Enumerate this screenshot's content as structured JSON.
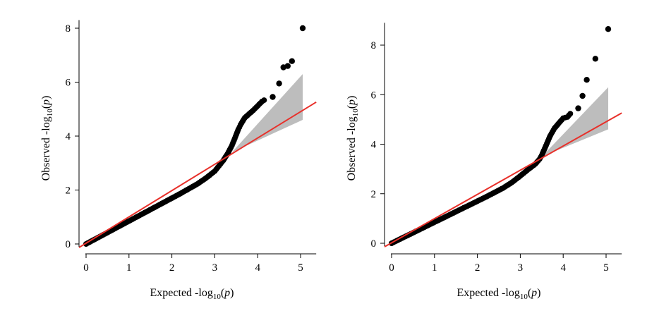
{
  "chart_data": [
    {
      "type": "scatter",
      "xlabel": "Expected -log10(p)",
      "ylabel": "Observed -log10(p)",
      "xlabel_parts": {
        "pre": "Expected -log",
        "sub": "10",
        "post_open": "(",
        "var": "p",
        "post_close": ")"
      },
      "ylabel_parts": {
        "pre": "Observed -log",
        "sub": "10",
        "post_open": "(",
        "var": "p",
        "post_close": ")"
      },
      "xlim": [
        0,
        5.2
      ],
      "ylim": [
        0,
        8.3
      ],
      "xticks": [
        "0",
        "1",
        "2",
        "3",
        "4",
        "5"
      ],
      "yticks": [
        "0",
        "2",
        "4",
        "6",
        "8"
      ],
      "grid": false,
      "reference_line": {
        "color": "#e8302a",
        "slope": 1,
        "x_range": [
          0,
          5.2
        ]
      },
      "confidence_band": {
        "color": "#bdbdbd",
        "x_start": 3.4,
        "x_end": 5.05,
        "upper_end": 6.3,
        "lower_end": 4.6
      },
      "points_color": "#000000",
      "series": [
        {
          "x": [
            0,
            0.2,
            0.4,
            0.6,
            0.8,
            1.0,
            1.2,
            1.4,
            1.6,
            1.8,
            2.0,
            2.2,
            2.4,
            2.6,
            2.8,
            3.0,
            3.1,
            3.2,
            3.3,
            3.35,
            3.4,
            3.45,
            3.5,
            3.55,
            3.6,
            3.65,
            3.7,
            3.8,
            3.9,
            4.0,
            4.1,
            4.2,
            4.35,
            4.5,
            4.6,
            4.7,
            4.8,
            5.05
          ],
          "y": [
            0,
            0.17,
            0.34,
            0.51,
            0.68,
            0.85,
            1.02,
            1.19,
            1.36,
            1.53,
            1.7,
            1.87,
            2.05,
            2.23,
            2.45,
            2.7,
            2.9,
            3.1,
            3.35,
            3.5,
            3.65,
            3.85,
            4.05,
            4.25,
            4.42,
            4.55,
            4.68,
            4.82,
            4.96,
            5.12,
            5.28,
            5.38,
            5.45,
            5.95,
            6.55,
            6.6,
            6.78,
            8.0
          ]
        }
      ]
    },
    {
      "type": "scatter",
      "xlabel": "Expected -log10(p)",
      "ylabel": "Observed -log10(p)",
      "xlabel_parts": {
        "pre": "Expected -log",
        "sub": "10",
        "post_open": "(",
        "var": "p",
        "post_close": ")"
      },
      "ylabel_parts": {
        "pre": "Observed -log",
        "sub": "10",
        "post_open": "(",
        "var": "p",
        "post_close": ")"
      },
      "xlim": [
        0,
        5.2
      ],
      "ylim": [
        0,
        8.9
      ],
      "xticks": [
        "0",
        "1",
        "2",
        "3",
        "4",
        "5"
      ],
      "yticks": [
        "0",
        "2",
        "4",
        "6",
        "8"
      ],
      "grid": false,
      "reference_line": {
        "color": "#e8302a",
        "slope": 1,
        "x_range": [
          0,
          5.2
        ]
      },
      "confidence_band": {
        "color": "#bdbdbd",
        "x_start": 3.5,
        "x_end": 5.05,
        "upper_end": 6.3,
        "lower_end": 4.6
      },
      "points_color": "#000000",
      "series": [
        {
          "x": [
            0,
            0.2,
            0.4,
            0.6,
            0.8,
            1.0,
            1.2,
            1.4,
            1.6,
            1.8,
            2.0,
            2.2,
            2.4,
            2.6,
            2.8,
            3.0,
            3.2,
            3.35,
            3.45,
            3.5,
            3.55,
            3.6,
            3.65,
            3.7,
            3.75,
            3.8,
            3.85,
            3.9,
            4.0,
            4.1,
            4.2,
            4.35,
            4.45,
            4.55,
            4.75,
            5.05
          ],
          "y": [
            0,
            0.17,
            0.34,
            0.51,
            0.68,
            0.85,
            1.02,
            1.19,
            1.36,
            1.53,
            1.7,
            1.87,
            2.05,
            2.23,
            2.45,
            2.72,
            3.0,
            3.2,
            3.4,
            3.55,
            3.75,
            3.95,
            4.15,
            4.35,
            4.5,
            4.65,
            4.75,
            4.85,
            5.05,
            5.1,
            5.3,
            5.45,
            5.95,
            6.6,
            7.45,
            8.65
          ]
        }
      ]
    }
  ]
}
